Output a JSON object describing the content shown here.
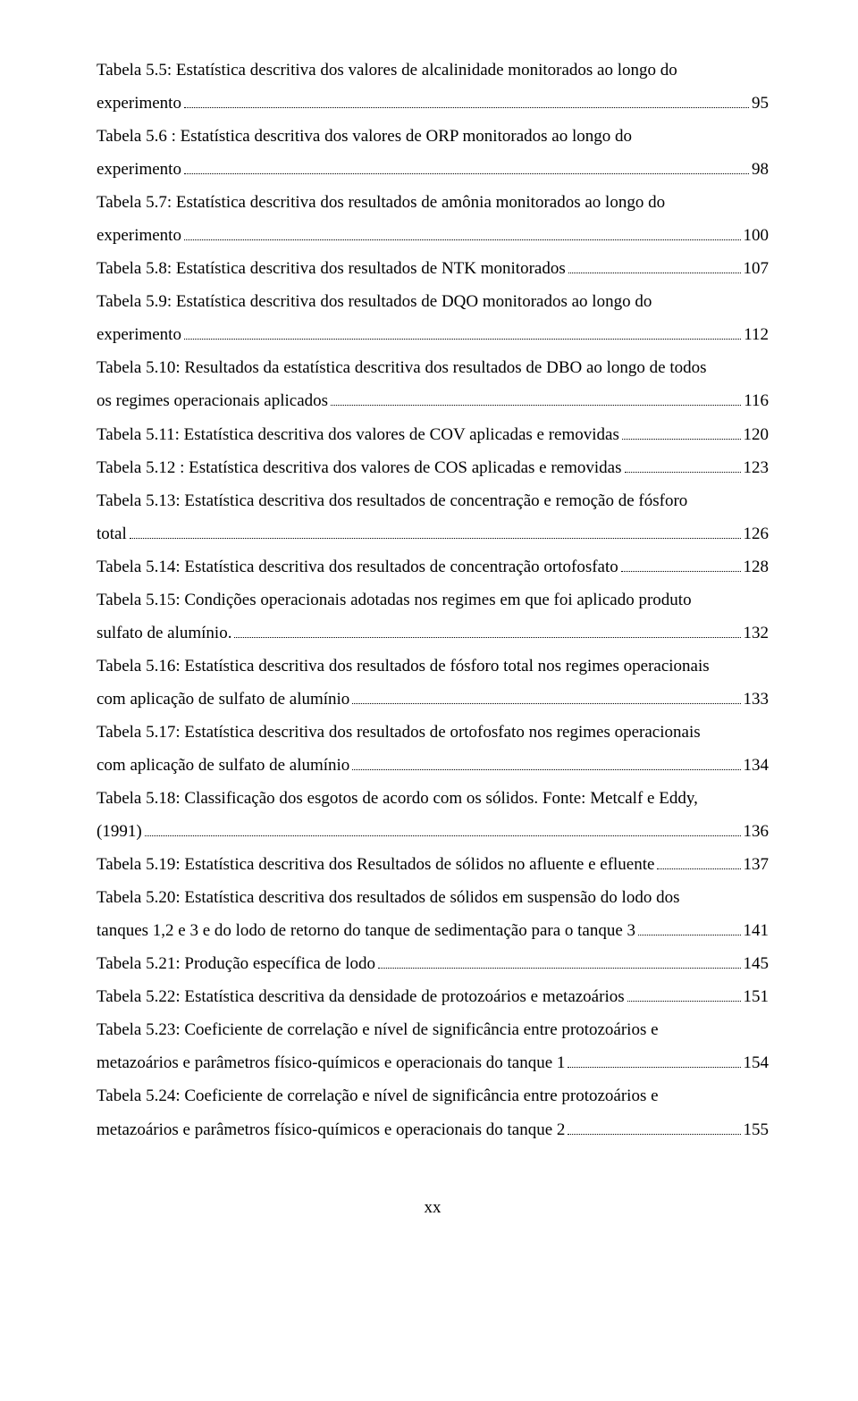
{
  "entries": [
    {
      "lines": [
        "Tabela 5.5: Estatística descritiva dos valores de alcalinidade monitorados ao longo do",
        "experimento"
      ],
      "page": "95"
    },
    {
      "lines": [
        "Tabela 5.6 : Estatística descritiva dos valores de ORP monitorados ao longo do",
        "experimento"
      ],
      "page": "98"
    },
    {
      "lines": [
        "Tabela 5.7: Estatística descritiva dos resultados de amônia monitorados ao longo do",
        "experimento"
      ],
      "page": "100"
    },
    {
      "lines": [
        "Tabela 5.8: Estatística descritiva dos resultados de NTK monitorados"
      ],
      "page": "107"
    },
    {
      "lines": [
        "Tabela 5.9:  Estatística descritiva dos resultados de DQO monitorados ao longo do",
        "experimento"
      ],
      "page": "112"
    },
    {
      "lines": [
        "Tabela 5.10: Resultados da estatística descritiva dos resultados de DBO ao longo de todos",
        "os regimes operacionais aplicados"
      ],
      "page": "116"
    },
    {
      "lines": [
        "Tabela 5.11: Estatística descritiva dos valores de COV aplicadas e removidas"
      ],
      "page": "120"
    },
    {
      "lines": [
        "Tabela 5.12 : Estatística descritiva dos valores de COS aplicadas e removidas"
      ],
      "page": "123"
    },
    {
      "lines": [
        "Tabela 5.13: Estatística descritiva dos resultados de concentração e remoção de fósforo",
        "total"
      ],
      "page": "126"
    },
    {
      "lines": [
        "Tabela 5.14: Estatística descritiva dos resultados de concentração ortofosfato"
      ],
      "page": "128"
    },
    {
      "lines": [
        "Tabela 5.15: Condições operacionais adotadas nos regimes em que foi aplicado produto",
        "sulfato de alumínio."
      ],
      "page": "132"
    },
    {
      "lines": [
        "Tabela 5.16: Estatística descritiva dos resultados de fósforo total nos regimes operacionais",
        "com aplicação de sulfato de alumínio"
      ],
      "page": "133"
    },
    {
      "lines": [
        "Tabela 5.17: Estatística descritiva dos resultados de ortofosfato nos regimes operacionais",
        "com aplicação de sulfato de alumínio"
      ],
      "page": "134"
    },
    {
      "lines": [
        "Tabela 5.18: Classificação dos esgotos de acordo com os sólidos. Fonte:  Metcalf e Eddy,",
        "(1991)"
      ],
      "page": "136"
    },
    {
      "lines": [
        "Tabela 5.19: Estatística descritiva dos Resultados de sólidos no afluente e efluente"
      ],
      "page": "137"
    },
    {
      "lines": [
        "Tabela 5.20: Estatística descritiva dos resultados de sólidos em suspensão do lodo  dos",
        "tanques 1,2 e 3 e do lodo de retorno do tanque de sedimentação para o tanque 3"
      ],
      "page": "141"
    },
    {
      "lines": [
        "Tabela 5.21: Produção específica de lodo"
      ],
      "page": "145"
    },
    {
      "lines": [
        "Tabela 5.22: Estatística descritiva da densidade de protozoários e metazoários"
      ],
      "page": "151"
    },
    {
      "lines": [
        "Tabela 5.23: Coeficiente de correlação e nível de significância entre protozoários e",
        "metazoários e parâmetros físico-químicos e operacionais do tanque 1"
      ],
      "page": "154"
    },
    {
      "lines": [
        "Tabela 5.24: Coeficiente de correlação e nível de significância entre protozoários e",
        "metazoários e parâmetros físico-químicos e operacionais do tanque 2"
      ],
      "page": "155"
    }
  ],
  "pageNumber": "xx"
}
